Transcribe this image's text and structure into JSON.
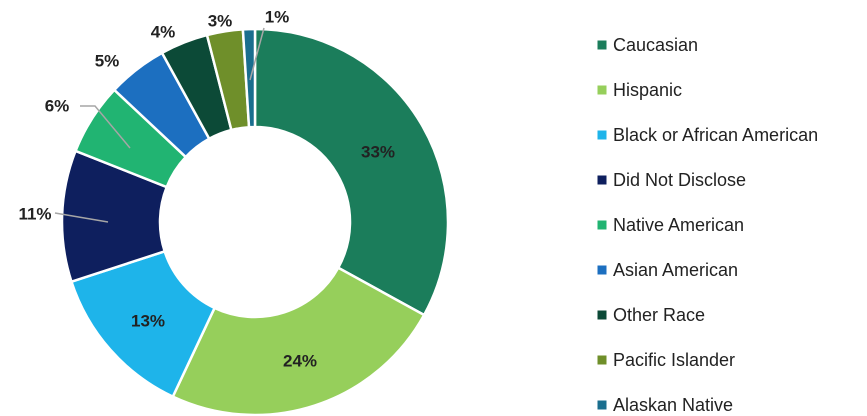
{
  "chart_data": {
    "type": "donut",
    "categories": [
      "Caucasian",
      "Hispanic",
      "Black or African American",
      "Did Not Disclose",
      "Native American",
      "Asian American",
      "Other Race",
      "Pacific Islander",
      "Alaskan Native"
    ],
    "values": [
      33,
      24,
      13,
      11,
      6,
      5,
      4,
      3,
      1
    ],
    "value_labels": [
      "33%",
      "24%",
      "13%",
      "11%",
      "6%",
      "5%",
      "4%",
      "3%",
      "1%"
    ],
    "colors": [
      "#1b7d5b",
      "#96cf5b",
      "#1eb4ea",
      "#0e1f5e",
      "#21b472",
      "#1c6fc0",
      "#0c4a37",
      "#6f8f2a",
      "#1a6e8e"
    ],
    "legend": "right"
  }
}
